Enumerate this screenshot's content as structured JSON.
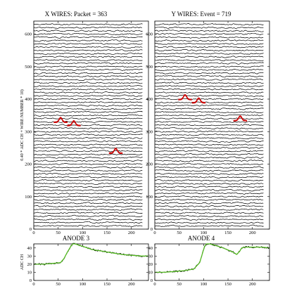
{
  "chart_data": [
    {
      "type": "line",
      "panel": "x-wires",
      "title": "X WIRES: Packet = 363",
      "ylabel": "0.40 * ADC CH + WIRE NUMBER * 10)",
      "xlim": [
        0,
        235
      ],
      "ylim": [
        0,
        640
      ],
      "xticks": [
        0,
        50,
        100,
        150,
        200
      ],
      "yticks": [
        0,
        100,
        200,
        300,
        400,
        500,
        600
      ],
      "wire_count": 63,
      "wire_spacing": 10,
      "trace_end_x": 222,
      "pulses": [
        {
          "center": 55,
          "offset": 330
        },
        {
          "center": 82,
          "offset": 320
        },
        {
          "center": 168,
          "offset": 235
        }
      ]
    },
    {
      "type": "line",
      "panel": "y-wires",
      "title": "Y WIRES: Event = 719",
      "ylabel": "",
      "xlim": [
        0,
        235
      ],
      "ylim": [
        0,
        640
      ],
      "xticks": [
        0,
        50,
        100,
        150,
        200
      ],
      "yticks": [
        0,
        100,
        200,
        300,
        400,
        500,
        600
      ],
      "wire_count": 63,
      "wire_spacing": 10,
      "trace_end_x": 222,
      "pulses": [
        {
          "center": 62,
          "offset": 400
        },
        {
          "center": 90,
          "offset": 390
        },
        {
          "center": 175,
          "offset": 335
        }
      ]
    },
    {
      "type": "line",
      "panel": "anode-3",
      "title": "ANODE 3",
      "ylabel": "ADC CH",
      "xlim": [
        0,
        235
      ],
      "ylim": [
        0,
        45
      ],
      "xticks": [
        0,
        50,
        100,
        150,
        200
      ],
      "yticks": [
        0,
        10,
        20,
        30,
        40
      ],
      "series": [
        {
          "x": [
            0,
            20,
            40,
            55,
            62,
            68,
            72,
            76,
            80,
            85,
            90,
            100,
            120,
            140,
            160,
            180,
            200,
            220,
            235
          ],
          "y": [
            20,
            20,
            21,
            22,
            27,
            34,
            38,
            42,
            45,
            45,
            44,
            42,
            38,
            36,
            34,
            32,
            31,
            30,
            30
          ]
        }
      ]
    },
    {
      "type": "line",
      "panel": "anode-4",
      "title": "ANODE 4",
      "ylabel": "",
      "xlim": [
        0,
        235
      ],
      "ylim": [
        0,
        45
      ],
      "xticks": [
        0,
        50,
        100,
        150,
        200
      ],
      "yticks": [
        0,
        10,
        20,
        30,
        40
      ],
      "series": [
        {
          "x": [
            0,
            20,
            40,
            60,
            80,
            92,
            98,
            102,
            106,
            112,
            120,
            140,
            160,
            168,
            174,
            178,
            184,
            192,
            200,
            220,
            235
          ],
          "y": [
            10,
            10,
            11,
            12,
            14,
            22,
            34,
            42,
            45,
            45,
            44,
            40,
            35,
            32,
            36,
            40,
            41,
            41,
            41,
            41,
            40
          ]
        }
      ]
    }
  ],
  "colors": {
    "trace": "#000000",
    "pulse": "#cc0000",
    "anode": "#55bb22",
    "anode_noise": "#000000"
  }
}
